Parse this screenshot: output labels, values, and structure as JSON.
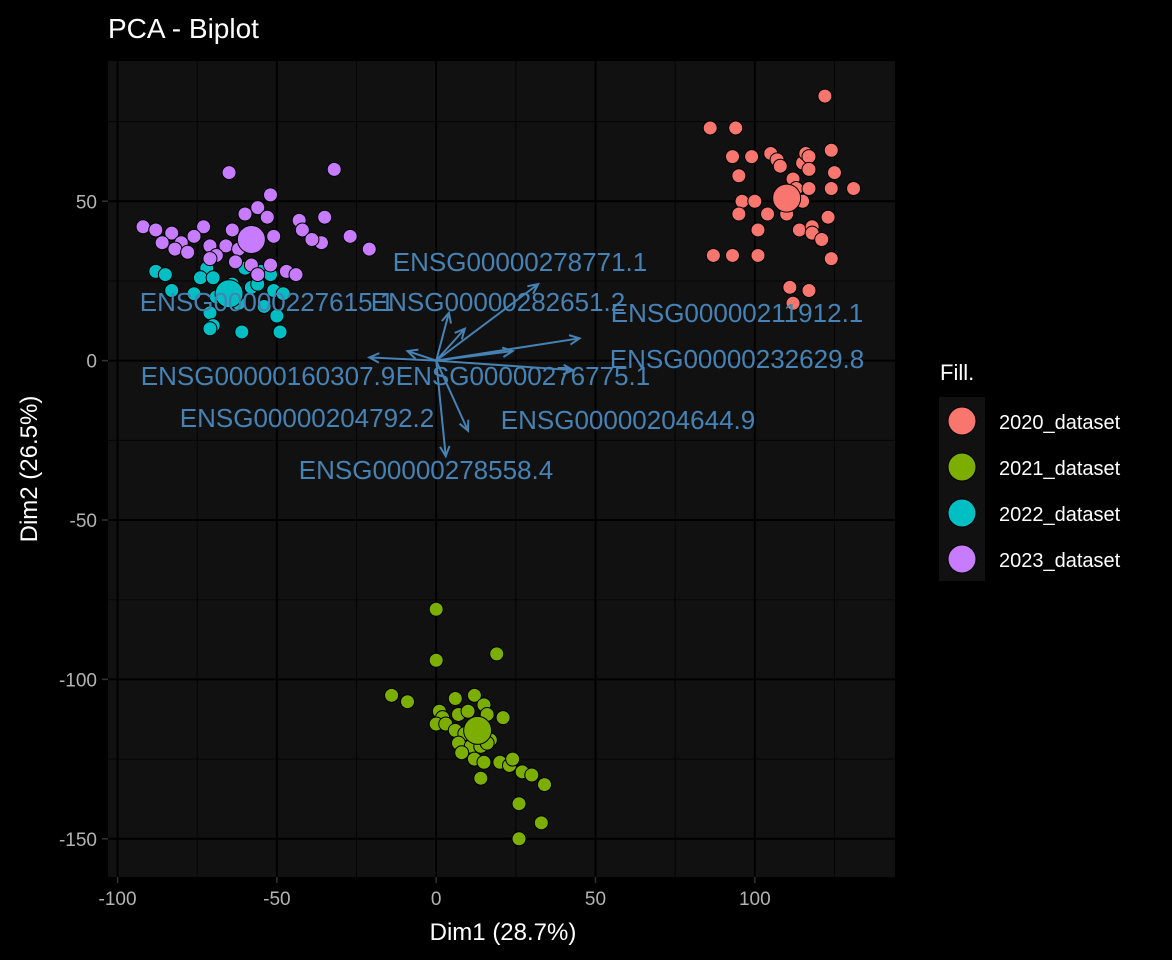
{
  "chart_data": {
    "type": "scatter",
    "title": "PCA - Biplot",
    "xlabel": "Dim1 (28.7%)",
    "ylabel": "Dim2 (26.5%)",
    "xlim": [
      -103,
      144
    ],
    "ylim": [
      -162,
      94
    ],
    "x_ticks": [
      -100,
      -50,
      0,
      50,
      100
    ],
    "y_ticks": [
      -150,
      -100,
      -50,
      0,
      50
    ],
    "x_tick_labels": [
      "-100",
      "-50",
      "0",
      "50",
      "100"
    ],
    "y_tick_labels": [
      "-150",
      "-100",
      "-50",
      "0",
      "50"
    ],
    "grid": true,
    "background": "#111111",
    "legend": {
      "title": "Fill.",
      "placement": "right",
      "entries": [
        "2020_dataset",
        "2021_dataset",
        "2022_dataset",
        "2023_dataset"
      ]
    },
    "series": [
      {
        "name": "2020_dataset",
        "color": "#F8766D",
        "centroid": [
          110,
          51
        ],
        "points": [
          [
            122,
            83
          ],
          [
            86,
            73
          ],
          [
            94,
            73
          ],
          [
            93,
            64
          ],
          [
            99,
            64
          ],
          [
            105,
            65
          ],
          [
            107,
            63
          ],
          [
            108,
            61
          ],
          [
            115,
            62
          ],
          [
            116,
            65
          ],
          [
            117,
            64
          ],
          [
            117,
            60
          ],
          [
            124,
            66
          ],
          [
            95,
            58
          ],
          [
            112,
            57
          ],
          [
            125,
            59
          ],
          [
            131,
            54
          ],
          [
            124,
            54
          ],
          [
            96,
            50
          ],
          [
            100,
            50
          ],
          [
            108,
            51
          ],
          [
            113,
            54
          ],
          [
            115,
            50
          ],
          [
            117,
            54
          ],
          [
            104,
            46
          ],
          [
            110,
            46
          ],
          [
            95,
            46
          ],
          [
            123,
            45
          ],
          [
            101,
            41
          ],
          [
            114,
            41
          ],
          [
            118,
            42
          ],
          [
            118,
            40
          ],
          [
            121,
            38
          ],
          [
            93,
            33
          ],
          [
            87,
            33
          ],
          [
            101,
            33
          ],
          [
            124,
            32
          ],
          [
            111,
            23
          ],
          [
            117,
            22
          ],
          [
            112,
            18
          ]
        ]
      },
      {
        "name": "2021_dataset",
        "color": "#7CAE00",
        "centroid": [
          13,
          -116
        ],
        "points": [
          [
            0,
            -78
          ],
          [
            0,
            -94
          ],
          [
            19,
            -92
          ],
          [
            -14,
            -105
          ],
          [
            -9,
            -107
          ],
          [
            6,
            -106
          ],
          [
            12,
            -105
          ],
          [
            15,
            -108
          ],
          [
            1,
            -110
          ],
          [
            2,
            -112
          ],
          [
            7,
            -111
          ],
          [
            10,
            -110
          ],
          [
            16,
            -111
          ],
          [
            21,
            -112
          ],
          [
            0,
            -114
          ],
          [
            3,
            -114
          ],
          [
            6,
            -116
          ],
          [
            9,
            -117
          ],
          [
            12,
            -118
          ],
          [
            17,
            -119
          ],
          [
            7,
            -120
          ],
          [
            11,
            -121
          ],
          [
            14,
            -121
          ],
          [
            16,
            -120
          ],
          [
            20,
            -126
          ],
          [
            23,
            -127
          ],
          [
            8,
            -123
          ],
          [
            12,
            -125
          ],
          [
            15,
            -126
          ],
          [
            24,
            -125
          ],
          [
            27,
            -129
          ],
          [
            14,
            -131
          ],
          [
            30,
            -130
          ],
          [
            34,
            -133
          ],
          [
            26,
            -139
          ],
          [
            33,
            -145
          ],
          [
            26,
            -150
          ]
        ]
      },
      {
        "name": "2022_dataset",
        "color": "#00BFC4",
        "centroid": [
          -65,
          21
        ],
        "points": [
          [
            -88,
            28
          ],
          [
            -85,
            27
          ],
          [
            -72,
            29
          ],
          [
            -74,
            26
          ],
          [
            -70,
            26
          ],
          [
            -60,
            29
          ],
          [
            -55,
            28
          ],
          [
            -52,
            27
          ],
          [
            -64,
            24
          ],
          [
            -58,
            23
          ],
          [
            -56,
            24
          ],
          [
            -51,
            22
          ],
          [
            -48,
            21
          ],
          [
            -83,
            22
          ],
          [
            -76,
            21
          ],
          [
            -69,
            20
          ],
          [
            -62,
            18
          ],
          [
            -54,
            17
          ],
          [
            -71,
            15
          ],
          [
            -50,
            14
          ],
          [
            -70,
            11
          ],
          [
            -71,
            10
          ],
          [
            -61,
            9
          ],
          [
            -49,
            9
          ]
        ]
      },
      {
        "name": "2023_dataset",
        "color": "#C77CFF",
        "centroid": [
          -58,
          38
        ],
        "points": [
          [
            -32,
            60
          ],
          [
            -65,
            59
          ],
          [
            -52,
            52
          ],
          [
            -56,
            48
          ],
          [
            -60,
            46
          ],
          [
            -53,
            45
          ],
          [
            -35,
            45
          ],
          [
            -43,
            44
          ],
          [
            -92,
            42
          ],
          [
            -88,
            41
          ],
          [
            -83,
            40
          ],
          [
            -73,
            42
          ],
          [
            -64,
            41
          ],
          [
            -59,
            40
          ],
          [
            -51,
            39
          ],
          [
            -42,
            41
          ],
          [
            -36,
            37
          ],
          [
            -86,
            37
          ],
          [
            -80,
            37
          ],
          [
            -76,
            39
          ],
          [
            -71,
            36
          ],
          [
            -66,
            36
          ],
          [
            -62,
            35
          ],
          [
            -39,
            38
          ],
          [
            -27,
            39
          ],
          [
            -21,
            35
          ],
          [
            -82,
            35
          ],
          [
            -78,
            34
          ],
          [
            -69,
            33
          ],
          [
            -63,
            31
          ],
          [
            -58,
            30
          ],
          [
            -52,
            30
          ],
          [
            -47,
            28
          ],
          [
            -44,
            27
          ],
          [
            -56,
            27
          ],
          [
            -71,
            32
          ]
        ]
      }
    ],
    "loadings": [
      {
        "label": "ENSG00000278771.1",
        "x": 32,
        "y": 24
      },
      {
        "label": "ENSG00000282651.2",
        "x": 9,
        "y": 10
      },
      {
        "label": "ENSG00000211912.1",
        "x": 45,
        "y": 7
      },
      {
        "label": "ENSG00000232629.8",
        "x": 43,
        "y": -3
      },
      {
        "label": "ENSG00000227615.1",
        "x": 4,
        "y": 15
      },
      {
        "label": "ENSG00000160307.9",
        "x": -21,
        "y": 1
      },
      {
        "label": "ENSG00000276775.1",
        "x": 24,
        "y": 3
      },
      {
        "label": "ENSG00000204792.2",
        "x": -9,
        "y": 3
      },
      {
        "label": "ENSG00000204644.9",
        "x": 10,
        "y": -22
      },
      {
        "label": "ENSG00000278558.4",
        "x": 3,
        "y": -30
      }
    ],
    "loading_label_positions": [
      [
        520,
        271
      ],
      [
        498,
        311
      ],
      [
        737,
        322
      ],
      [
        737,
        368
      ],
      [
        267,
        311
      ],
      [
        268,
        385
      ],
      [
        523,
        385
      ],
      [
        307,
        427
      ],
      [
        628,
        429
      ],
      [
        426,
        479
      ]
    ]
  }
}
